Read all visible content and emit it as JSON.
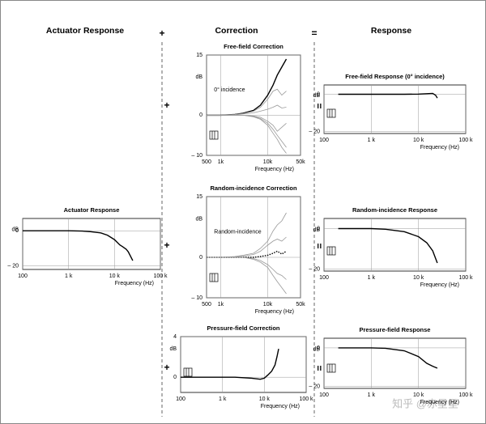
{
  "columns": [
    "Actuator Response",
    "Correction",
    "Response"
  ],
  "operators": {
    "plus": "+",
    "equals": "="
  },
  "watermark": "知乎 @赤星星",
  "chart_data": [
    {
      "type": "line",
      "title": "Actuator Response",
      "x_label": "Frequency (Hz)",
      "y_label": "dB",
      "xscale": "log",
      "grid": true,
      "xlim": [
        100,
        100000
      ],
      "xticks": [
        100,
        {
          "value": 1000,
          "label": "1 k"
        },
        {
          "value": 10000,
          "label": "10 k"
        },
        {
          "value": 100000,
          "label": "100 k"
        }
      ],
      "ylim": [
        -22,
        7
      ],
      "yticks": [
        0,
        {
          "value": -20,
          "label": "– 20"
        }
      ],
      "x": [
        100,
        200,
        500,
        1000,
        2000,
        3000,
        5000,
        7000,
        10000,
        13000,
        15000,
        18000,
        20000,
        25000
      ],
      "series": [
        {
          "color": "#000000",
          "values": [
            0,
            0,
            0,
            0,
            -0.2,
            -0.5,
            -1.2,
            -2.5,
            -5,
            -8,
            -9,
            -10.5,
            -12,
            -17
          ]
        }
      ]
    },
    {
      "type": "line",
      "title": "Free-field Correction",
      "x_label": "Frequency (Hz)",
      "y_label": "dB",
      "xscale": "log",
      "grid": true,
      "annotation": "0° incidence",
      "xlim": [
        500,
        50000
      ],
      "xticks": [
        500,
        {
          "value": 1000,
          "label": "1k"
        },
        {
          "value": 10000,
          "label": "10k"
        },
        {
          "value": 50000,
          "label": "50k"
        }
      ],
      "ylim": [
        -10,
        15
      ],
      "yticks": [
        {
          "value": -10,
          "label": "– 10"
        },
        0,
        15
      ],
      "x": [
        500,
        1000,
        2000,
        3000,
        5000,
        7000,
        10000,
        13000,
        16000,
        20000,
        25000
      ],
      "series": [
        {
          "color": "#000000",
          "values": [
            0,
            0,
            0.2,
            0.5,
            1.2,
            2.5,
            5,
            7.5,
            10,
            12,
            14
          ]
        },
        {
          "color": "#999999",
          "values": [
            0,
            0,
            0.2,
            0.4,
            1,
            2,
            4,
            6,
            6.5,
            5,
            6
          ]
        },
        {
          "color": "#999999",
          "values": [
            0,
            0,
            0.1,
            0.3,
            0.6,
            1,
            1.5,
            2,
            2.5,
            1.8,
            2
          ]
        },
        {
          "color": "#999999",
          "values": [
            0,
            0,
            0,
            0,
            -0.3,
            -0.8,
            -2,
            -3.5,
            -5,
            -6.5,
            -8
          ]
        },
        {
          "color": "#999999",
          "values": [
            0,
            0,
            0,
            0,
            -0.4,
            -1,
            -2.5,
            -4.5,
            -6,
            -8,
            -9.5
          ]
        },
        {
          "color": "#999999",
          "values": [
            0,
            0,
            0,
            0,
            -0.2,
            -0.5,
            -1.5,
            -2.5,
            -4,
            -3,
            -2
          ]
        }
      ]
    },
    {
      "type": "line",
      "title": "Random-incidence Correction",
      "x_label": "Frequency (Hz)",
      "y_label": "dB",
      "xscale": "log",
      "grid": true,
      "annotation": "Random-incidence",
      "xlim": [
        500,
        50000
      ],
      "xticks": [
        500,
        {
          "value": 1000,
          "label": "1k"
        },
        {
          "value": 10000,
          "label": "10k"
        },
        {
          "value": 50000,
          "label": "50k"
        }
      ],
      "ylim": [
        -10,
        15
      ],
      "yticks": [
        {
          "value": -10,
          "label": "– 10"
        },
        0,
        15
      ],
      "x": [
        500,
        1000,
        2000,
        3000,
        5000,
        7000,
        10000,
        13000,
        16000,
        20000,
        25000
      ],
      "series": [
        {
          "color": "#000000",
          "linestyle": "dotted",
          "values": [
            0,
            0,
            0,
            0,
            0,
            0.2,
            0.5,
            1,
            1.5,
            0.8,
            1.5
          ]
        },
        {
          "color": "#999999",
          "values": [
            0,
            0,
            0.2,
            0.5,
            1,
            2.2,
            4,
            6.5,
            8,
            9,
            11
          ]
        },
        {
          "color": "#999999",
          "values": [
            0,
            0,
            0.1,
            0.3,
            0.7,
            1.5,
            3,
            4,
            4.5,
            4,
            5
          ]
        },
        {
          "color": "#999999",
          "values": [
            0,
            0,
            0,
            0,
            -0.3,
            -0.8,
            -1.8,
            -3,
            -4,
            -4.5,
            -5.5
          ]
        },
        {
          "color": "#999999",
          "values": [
            0,
            0,
            0,
            0,
            -0.5,
            -1.2,
            -2.5,
            -4.5,
            -6,
            -7.5,
            -9
          ]
        }
      ]
    },
    {
      "type": "line",
      "title": "Pressure-field Correction",
      "x_label": "Frequency (Hz)",
      "y_label": "dB",
      "xscale": "log",
      "grid": true,
      "xlim": [
        100,
        100000
      ],
      "xticks": [
        100,
        {
          "value": 1000,
          "label": "1 k"
        },
        {
          "value": 10000,
          "label": "10 k"
        },
        {
          "value": 100000,
          "label": "100 k"
        }
      ],
      "ylim": [
        -1.5,
        4
      ],
      "yticks": [
        0,
        4
      ],
      "x": [
        100,
        1000,
        2000,
        5000,
        8000,
        10000,
        12000,
        15000,
        18000,
        20000,
        22000
      ],
      "series": [
        {
          "color": "#000000",
          "values": [
            0,
            0,
            0,
            -0.1,
            -0.2,
            -0.1,
            0.2,
            0.6,
            1.2,
            2,
            2.8
          ]
        }
      ]
    },
    {
      "type": "line",
      "title": "Free-field Response (0° incidence)",
      "x_label": "Frequency (Hz)",
      "y_label": "dB",
      "xscale": "log",
      "grid": true,
      "xlim": [
        100,
        100000
      ],
      "xticks": [
        100,
        {
          "value": 1000,
          "label": "1 k"
        },
        {
          "value": 10000,
          "label": "10 k"
        },
        {
          "value": 100000,
          "label": "100 k"
        }
      ],
      "ylim": [
        -21,
        5
      ],
      "yticks": [
        0,
        {
          "value": -20,
          "label": "– 20"
        }
      ],
      "x": [
        200,
        1000,
        5000,
        10000,
        15000,
        20000,
        23000,
        25000
      ],
      "series": [
        {
          "color": "#000000",
          "values": [
            0,
            0,
            0,
            0.1,
            0.3,
            0.5,
            -0.5,
            -2
          ]
        }
      ]
    },
    {
      "type": "line",
      "title": "Random-incidence Response",
      "x_label": "Frequency (Hz)",
      "y_label": "dB",
      "xscale": "log",
      "grid": true,
      "xlim": [
        100,
        100000
      ],
      "xticks": [
        100,
        {
          "value": 1000,
          "label": "1 k"
        },
        {
          "value": 10000,
          "label": "10 k"
        },
        {
          "value": 100000,
          "label": "100 k"
        }
      ],
      "ylim": [
        -21,
        5
      ],
      "yticks": [
        0,
        {
          "value": -20,
          "label": "– 20"
        }
      ],
      "x": [
        200,
        1000,
        2000,
        5000,
        10000,
        15000,
        20000,
        25000
      ],
      "series": [
        {
          "color": "#000000",
          "values": [
            0,
            0,
            -0.3,
            -1.5,
            -4,
            -7,
            -11,
            -17
          ]
        }
      ]
    },
    {
      "type": "line",
      "title": "Pressure-field Response",
      "x_label": "Frequency (Hz)",
      "y_label": "dB",
      "xscale": "log",
      "grid": true,
      "xlim": [
        100,
        100000
      ],
      "xticks": [
        100,
        {
          "value": 1000,
          "label": "1 k"
        },
        {
          "value": 10000,
          "label": "10 k"
        },
        {
          "value": 100000,
          "label": "100 k"
        }
      ],
      "ylim": [
        -21,
        5
      ],
      "yticks": [
        0,
        {
          "value": -20,
          "label": "– 20"
        }
      ],
      "x": [
        200,
        1000,
        2000,
        5000,
        10000,
        15000,
        20000,
        25000
      ],
      "series": [
        {
          "color": "#000000",
          "values": [
            0,
            0,
            -0.2,
            -1.5,
            -4.5,
            -8,
            -9.5,
            -10.5
          ]
        }
      ]
    }
  ]
}
